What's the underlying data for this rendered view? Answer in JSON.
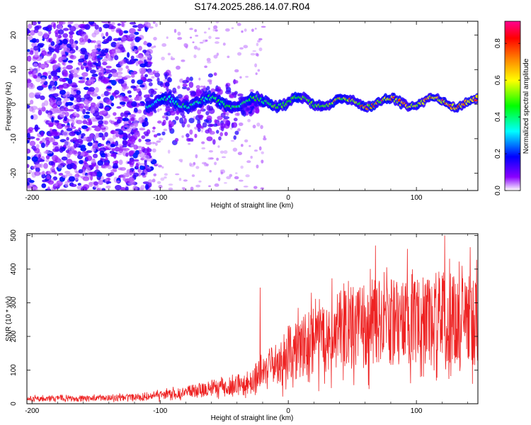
{
  "figure": {
    "title": "S174.2025.286.14.07.R04"
  },
  "chart_data": [
    {
      "type": "heatmap",
      "name": "spectrogram",
      "xlabel": "Height of straight line (km)",
      "ylabel": "Frequency (Hz)",
      "xlim": [
        -204,
        148
      ],
      "ylim": [
        -25,
        24
      ],
      "xticks": [
        -200,
        -100,
        0,
        100
      ],
      "yticks": [
        -20,
        -10,
        0,
        10,
        20
      ],
      "colorbar": {
        "label": "Normalized spectral amplitude",
        "range": [
          0.0,
          0.92
        ],
        "ticks": [
          0.0,
          0.2,
          0.4,
          0.6,
          0.8
        ],
        "colormap": [
          "#ffffff",
          "#8a00ff",
          "#0000ff",
          "#00ffff",
          "#00ff00",
          "#ffff00",
          "#ff8000",
          "#ff0000",
          "#ff0090"
        ]
      },
      "features": {
        "noise_region_km": [
          -204,
          -108
        ],
        "noise_amplitude": [
          0.05,
          0.25
        ],
        "carrier_frequency_hz": 0.5,
        "carrier_start_km": -110,
        "carrier_peak_amplitude": 0.9,
        "spread_region_km": [
          -80,
          -40
        ],
        "spread_frequency_hz": [
          -12,
          10
        ]
      }
    },
    {
      "type": "line",
      "name": "snr",
      "xlabel": "Height of straight line (km)",
      "ylabel": "SNR (10 * v/v)",
      "xlim": [
        -204,
        148
      ],
      "ylim": [
        0,
        505
      ],
      "xticks": [
        -200,
        -100,
        0,
        100
      ],
      "yticks": [
        0,
        100,
        200,
        300,
        400,
        500
      ],
      "color": "#ee2222",
      "trend_points": [
        {
          "x": -204,
          "y": 15
        },
        {
          "x": -150,
          "y": 16
        },
        {
          "x": -110,
          "y": 20
        },
        {
          "x": -90,
          "y": 30
        },
        {
          "x": -60,
          "y": 45
        },
        {
          "x": -40,
          "y": 55
        },
        {
          "x": -30,
          "y": 60
        },
        {
          "x": -20,
          "y": 95
        },
        {
          "x": -10,
          "y": 115
        },
        {
          "x": 0,
          "y": 150
        },
        {
          "x": 20,
          "y": 185
        },
        {
          "x": 40,
          "y": 220
        },
        {
          "x": 60,
          "y": 235
        },
        {
          "x": 80,
          "y": 245
        },
        {
          "x": 100,
          "y": 240
        },
        {
          "x": 120,
          "y": 255
        },
        {
          "x": 148,
          "y": 250
        }
      ],
      "spread_fraction": 0.55,
      "notable_peaks": [
        {
          "x": -22,
          "y": 345
        },
        {
          "x": 18,
          "y": 330
        },
        {
          "x": 68,
          "y": 470
        },
        {
          "x": 93,
          "y": 460
        },
        {
          "x": 122,
          "y": 500
        },
        {
          "x": 142,
          "y": 465
        }
      ]
    }
  ]
}
